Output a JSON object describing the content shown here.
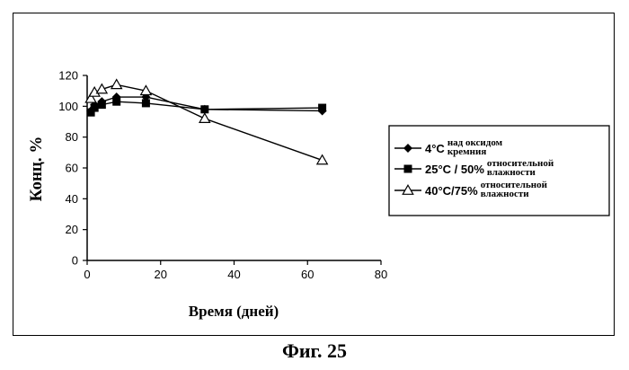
{
  "caption": "Фиг. 25",
  "chart_data": {
    "type": "line",
    "xlabel": "Время (дней)",
    "ylabel": "Конц. %",
    "xlim": [
      0,
      80
    ],
    "ylim": [
      0,
      120
    ],
    "xticks": [
      0,
      20,
      40,
      60,
      80
    ],
    "yticks": [
      0,
      20,
      40,
      60,
      80,
      100,
      120
    ],
    "grid": false,
    "legend_position": "right",
    "series": [
      {
        "name": "4°C над оксидом кремния",
        "name_main": "4°C",
        "name_sub": [
          "над оксидом",
          "кремния"
        ],
        "marker": "diamond",
        "x": [
          1,
          2,
          4,
          8,
          16,
          32,
          64
        ],
        "y": [
          97,
          101,
          103,
          106,
          106,
          98,
          97
        ]
      },
      {
        "name": "25°C / 50% относительной влажности",
        "name_main": "25°C / 50%",
        "name_sub": [
          "относительной",
          "влажности"
        ],
        "marker": "square",
        "x": [
          1,
          2,
          4,
          8,
          16,
          32,
          64
        ],
        "y": [
          96,
          99,
          101,
          103,
          102,
          98,
          99
        ]
      },
      {
        "name": "40°C/75% относительной влажности",
        "name_main": "40°C/75%",
        "name_sub": [
          "относительной",
          "влажности"
        ],
        "marker": "triangle",
        "x": [
          1,
          2,
          4,
          8,
          16,
          32,
          64
        ],
        "y": [
          105,
          109,
          111,
          114,
          110,
          92,
          65
        ]
      }
    ]
  }
}
